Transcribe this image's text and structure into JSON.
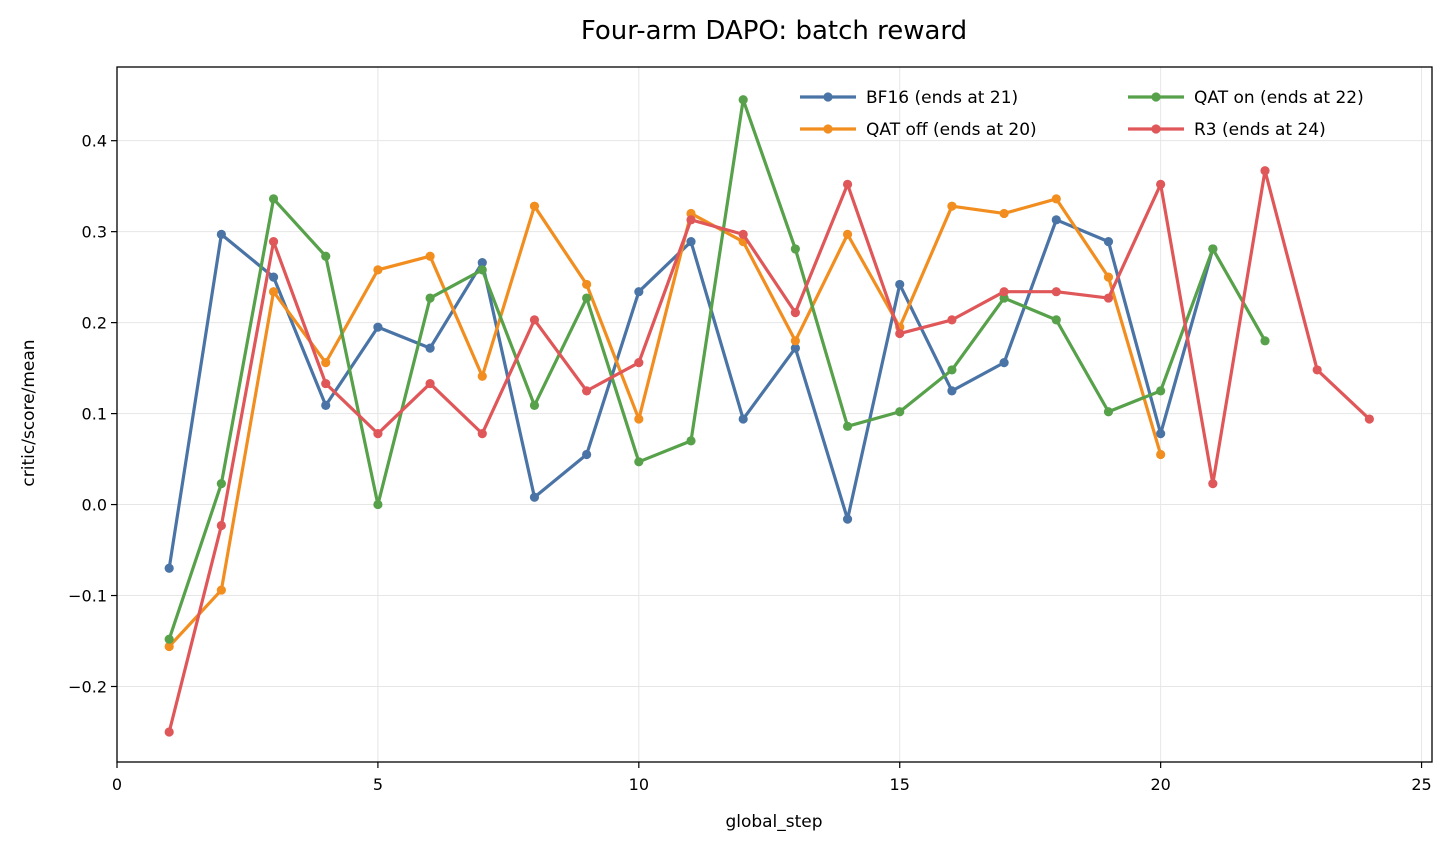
{
  "chart_data": {
    "type": "line",
    "title": "Four-arm DAPO: batch reward",
    "xlabel": "global_step",
    "ylabel": "critic/score/mean",
    "xlim": [
      0,
      25.2
    ],
    "ylim": [
      -0.283,
      0.481
    ],
    "xticks": [
      0,
      5,
      10,
      15,
      20,
      25
    ],
    "yticks": [
      -0.2,
      -0.1,
      0.0,
      0.1,
      0.2,
      0.3,
      0.4
    ],
    "ytick_labels": [
      "−0.2",
      "−0.1",
      "0.0",
      "0.1",
      "0.2",
      "0.3",
      "0.4"
    ],
    "grid": true,
    "legend_position": "top-right",
    "series": [
      {
        "name": "BF16 (ends at 21)",
        "color": "#4a74a6",
        "x": [
          1,
          2,
          3,
          4,
          5,
          6,
          7,
          8,
          9,
          10,
          11,
          12,
          13,
          14,
          15,
          16,
          17,
          18,
          19,
          20,
          21
        ],
        "y": [
          -0.07,
          0.297,
          0.25,
          0.109,
          0.195,
          0.172,
          0.266,
          0.008,
          0.055,
          0.234,
          0.289,
          0.094,
          0.172,
          -0.016,
          0.242,
          0.125,
          0.156,
          0.313,
          0.289,
          0.078,
          0.281
        ]
      },
      {
        "name": "QAT off (ends at 20)",
        "color": "#f28e1f",
        "x": [
          1,
          2,
          3,
          4,
          5,
          6,
          7,
          8,
          9,
          10,
          11,
          12,
          13,
          14,
          15,
          16,
          17,
          18,
          19,
          20
        ],
        "y": [
          -0.156,
          -0.094,
          0.234,
          0.156,
          0.258,
          0.273,
          0.141,
          0.328,
          0.242,
          0.094,
          0.32,
          0.289,
          0.18,
          0.297,
          0.195,
          0.328,
          0.32,
          0.336,
          0.25,
          0.055
        ]
      },
      {
        "name": "QAT on (ends at 22)",
        "color": "#56a14a",
        "x": [
          1,
          2,
          3,
          4,
          5,
          6,
          7,
          8,
          9,
          10,
          11,
          12,
          13,
          14,
          15,
          16,
          17,
          18,
          19,
          20,
          21,
          22
        ],
        "y": [
          -0.148,
          0.023,
          0.336,
          0.273,
          0.0,
          0.227,
          0.258,
          0.109,
          0.227,
          0.047,
          0.07,
          0.445,
          0.281,
          0.086,
          0.102,
          0.148,
          0.227,
          0.203,
          0.102,
          0.125,
          0.281,
          0.18
        ]
      },
      {
        "name": "R3 (ends at 24)",
        "color": "#e05759",
        "x": [
          1,
          2,
          3,
          4,
          5,
          6,
          7,
          8,
          9,
          10,
          11,
          12,
          13,
          14,
          15,
          16,
          17,
          18,
          19,
          20,
          21,
          22,
          23,
          24
        ],
        "y": [
          -0.25,
          -0.023,
          0.289,
          0.133,
          0.078,
          0.133,
          0.078,
          0.203,
          0.125,
          0.156,
          0.313,
          0.297,
          0.211,
          0.352,
          0.188,
          0.203,
          0.234,
          0.234,
          0.227,
          0.352,
          0.023,
          0.367,
          0.148,
          0.094
        ]
      }
    ]
  }
}
